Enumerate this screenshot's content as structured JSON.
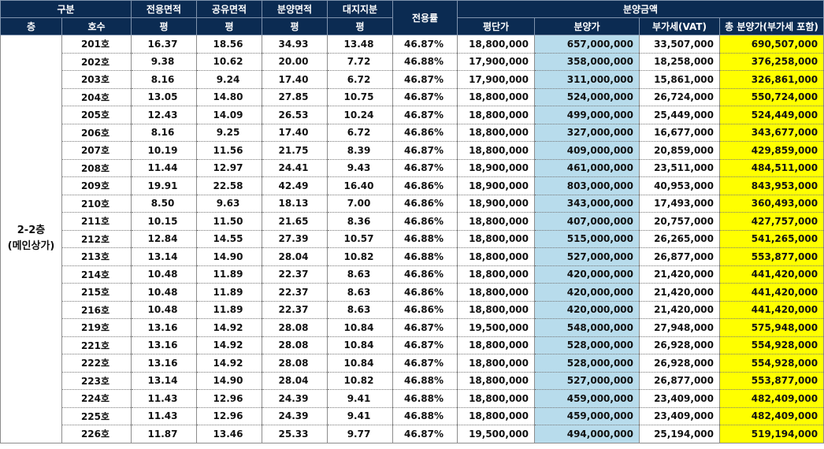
{
  "header": {
    "row1": {
      "category": "구분",
      "exclusive_area": "전용면적",
      "shared_area": "공유면적",
      "sale_area": "분양면적",
      "land_share": "대지지분",
      "usage_ratio": "전용률",
      "sale_amount": "분양금액"
    },
    "row2": {
      "floor": "층",
      "unit": "호수",
      "unit_exclusive": "평",
      "unit_shared": "평",
      "unit_sale": "평",
      "unit_land": "평",
      "price_per_pyeong": "평단가",
      "sale_price": "분양가",
      "vat": "부가세(VAT)",
      "total": "총 분양가(부가세 포함)"
    }
  },
  "floor_group": {
    "line1": "2-2층",
    "line2": "(메인상가)"
  },
  "rows": [
    {
      "unit": "201호",
      "exclusive": "16.37",
      "shared": "18.56",
      "sale_area": "34.93",
      "land": "13.48",
      "ratio": "46.87%",
      "ppp": "18,800,000",
      "sale_price": "657,000,000",
      "vat": "33,507,000",
      "total": "690,507,000"
    },
    {
      "unit": "202호",
      "exclusive": "9.38",
      "shared": "10.62",
      "sale_area": "20.00",
      "land": "7.72",
      "ratio": "46.88%",
      "ppp": "17,900,000",
      "sale_price": "358,000,000",
      "vat": "18,258,000",
      "total": "376,258,000"
    },
    {
      "unit": "203호",
      "exclusive": "8.16",
      "shared": "9.24",
      "sale_area": "17.40",
      "land": "6.72",
      "ratio": "46.87%",
      "ppp": "17,900,000",
      "sale_price": "311,000,000",
      "vat": "15,861,000",
      "total": "326,861,000"
    },
    {
      "unit": "204호",
      "exclusive": "13.05",
      "shared": "14.80",
      "sale_area": "27.85",
      "land": "10.75",
      "ratio": "46.87%",
      "ppp": "18,800,000",
      "sale_price": "524,000,000",
      "vat": "26,724,000",
      "total": "550,724,000"
    },
    {
      "unit": "205호",
      "exclusive": "12.43",
      "shared": "14.09",
      "sale_area": "26.53",
      "land": "10.24",
      "ratio": "46.87%",
      "ppp": "18,800,000",
      "sale_price": "499,000,000",
      "vat": "25,449,000",
      "total": "524,449,000"
    },
    {
      "unit": "206호",
      "exclusive": "8.16",
      "shared": "9.25",
      "sale_area": "17.40",
      "land": "6.72",
      "ratio": "46.86%",
      "ppp": "18,800,000",
      "sale_price": "327,000,000",
      "vat": "16,677,000",
      "total": "343,677,000"
    },
    {
      "unit": "207호",
      "exclusive": "10.19",
      "shared": "11.56",
      "sale_area": "21.75",
      "land": "8.39",
      "ratio": "46.87%",
      "ppp": "18,800,000",
      "sale_price": "409,000,000",
      "vat": "20,859,000",
      "total": "429,859,000"
    },
    {
      "unit": "208호",
      "exclusive": "11.44",
      "shared": "12.97",
      "sale_area": "24.41",
      "land": "9.43",
      "ratio": "46.87%",
      "ppp": "18,900,000",
      "sale_price": "461,000,000",
      "vat": "23,511,000",
      "total": "484,511,000"
    },
    {
      "unit": "209호",
      "exclusive": "19.91",
      "shared": "22.58",
      "sale_area": "42.49",
      "land": "16.40",
      "ratio": "46.86%",
      "ppp": "18,900,000",
      "sale_price": "803,000,000",
      "vat": "40,953,000",
      "total": "843,953,000"
    },
    {
      "unit": "210호",
      "exclusive": "8.50",
      "shared": "9.63",
      "sale_area": "18.13",
      "land": "7.00",
      "ratio": "46.86%",
      "ppp": "18,900,000",
      "sale_price": "343,000,000",
      "vat": "17,493,000",
      "total": "360,493,000"
    },
    {
      "unit": "211호",
      "exclusive": "10.15",
      "shared": "11.50",
      "sale_area": "21.65",
      "land": "8.36",
      "ratio": "46.86%",
      "ppp": "18,800,000",
      "sale_price": "407,000,000",
      "vat": "20,757,000",
      "total": "427,757,000"
    },
    {
      "unit": "212호",
      "exclusive": "12.84",
      "shared": "14.55",
      "sale_area": "27.39",
      "land": "10.57",
      "ratio": "46.88%",
      "ppp": "18,800,000",
      "sale_price": "515,000,000",
      "vat": "26,265,000",
      "total": "541,265,000"
    },
    {
      "unit": "213호",
      "exclusive": "13.14",
      "shared": "14.90",
      "sale_area": "28.04",
      "land": "10.82",
      "ratio": "46.88%",
      "ppp": "18,800,000",
      "sale_price": "527,000,000",
      "vat": "26,877,000",
      "total": "553,877,000"
    },
    {
      "unit": "214호",
      "exclusive": "10.48",
      "shared": "11.89",
      "sale_area": "22.37",
      "land": "8.63",
      "ratio": "46.86%",
      "ppp": "18,800,000",
      "sale_price": "420,000,000",
      "vat": "21,420,000",
      "total": "441,420,000"
    },
    {
      "unit": "215호",
      "exclusive": "10.48",
      "shared": "11.89",
      "sale_area": "22.37",
      "land": "8.63",
      "ratio": "46.86%",
      "ppp": "18,800,000",
      "sale_price": "420,000,000",
      "vat": "21,420,000",
      "total": "441,420,000"
    },
    {
      "unit": "216호",
      "exclusive": "10.48",
      "shared": "11.89",
      "sale_area": "22.37",
      "land": "8.63",
      "ratio": "46.86%",
      "ppp": "18,800,000",
      "sale_price": "420,000,000",
      "vat": "21,420,000",
      "total": "441,420,000"
    },
    {
      "unit": "219호",
      "exclusive": "13.16",
      "shared": "14.92",
      "sale_area": "28.08",
      "land": "10.84",
      "ratio": "46.87%",
      "ppp": "19,500,000",
      "sale_price": "548,000,000",
      "vat": "27,948,000",
      "total": "575,948,000"
    },
    {
      "unit": "221호",
      "exclusive": "13.16",
      "shared": "14.92",
      "sale_area": "28.08",
      "land": "10.84",
      "ratio": "46.87%",
      "ppp": "18,800,000",
      "sale_price": "528,000,000",
      "vat": "26,928,000",
      "total": "554,928,000"
    },
    {
      "unit": "222호",
      "exclusive": "13.16",
      "shared": "14.92",
      "sale_area": "28.08",
      "land": "10.84",
      "ratio": "46.87%",
      "ppp": "18,800,000",
      "sale_price": "528,000,000",
      "vat": "26,928,000",
      "total": "554,928,000"
    },
    {
      "unit": "223호",
      "exclusive": "13.14",
      "shared": "14.90",
      "sale_area": "28.04",
      "land": "10.82",
      "ratio": "46.88%",
      "ppp": "18,800,000",
      "sale_price": "527,000,000",
      "vat": "26,877,000",
      "total": "553,877,000"
    },
    {
      "unit": "224호",
      "exclusive": "11.43",
      "shared": "12.96",
      "sale_area": "24.39",
      "land": "9.41",
      "ratio": "46.88%",
      "ppp": "18,800,000",
      "sale_price": "459,000,000",
      "vat": "23,409,000",
      "total": "482,409,000"
    },
    {
      "unit": "225호",
      "exclusive": "11.43",
      "shared": "12.96",
      "sale_area": "24.39",
      "land": "9.41",
      "ratio": "46.88%",
      "ppp": "18,800,000",
      "sale_price": "459,000,000",
      "vat": "23,409,000",
      "total": "482,409,000"
    },
    {
      "unit": "226호",
      "exclusive": "11.87",
      "shared": "13.46",
      "sale_area": "25.33",
      "land": "9.77",
      "ratio": "46.87%",
      "ppp": "19,500,000",
      "sale_price": "494,000,000",
      "vat": "25,194,000",
      "total": "519,194,000"
    }
  ]
}
